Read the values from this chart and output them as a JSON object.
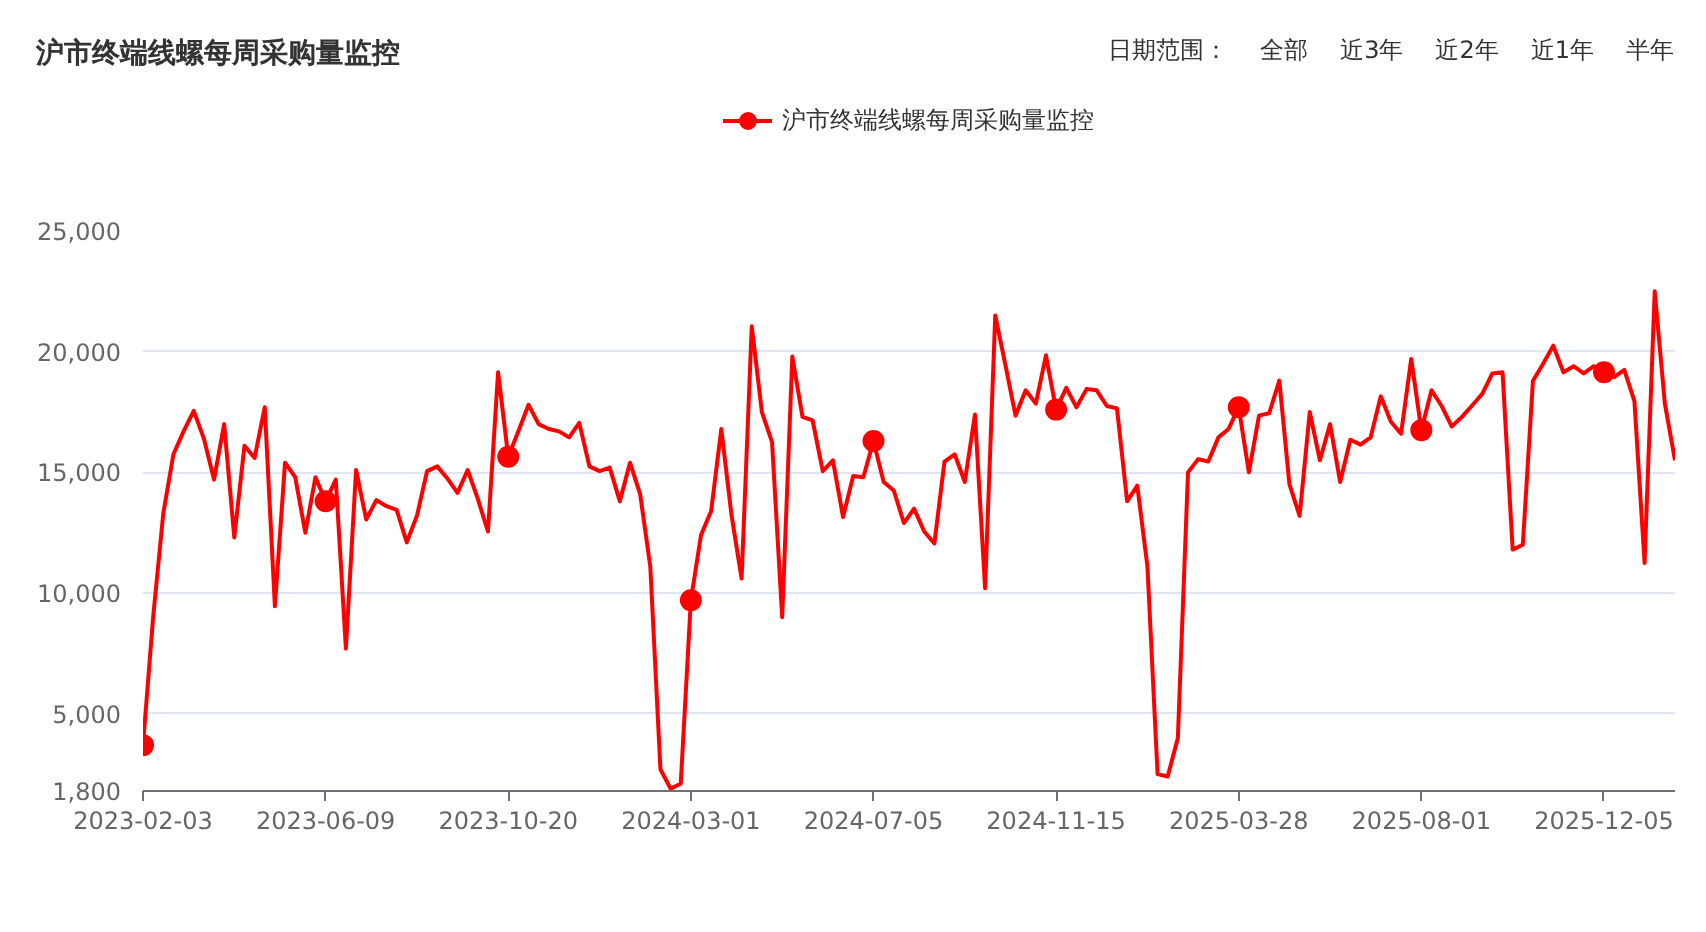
{
  "chart_data": {
    "type": "line",
    "title": "沪市终端线螺每周采购量监控",
    "annotations": [
      "日期范围：",
      "全部",
      "近3年",
      "近2年",
      "近1年",
      "半年"
    ],
    "categories": [
      "2023-02-03",
      null,
      null,
      null,
      null,
      null,
      null,
      null,
      null,
      null,
      null,
      null,
      null,
      null,
      null,
      null,
      null,
      null,
      "2023-06-09",
      null,
      null,
      null,
      null,
      null,
      null,
      null,
      null,
      null,
      null,
      null,
      null,
      null,
      null,
      null,
      null,
      null,
      "2023-10-20",
      null,
      null,
      null,
      null,
      null,
      null,
      null,
      null,
      null,
      null,
      null,
      null,
      null,
      null,
      null,
      null,
      null,
      "2024-03-01",
      null,
      null,
      null,
      null,
      null,
      null,
      null,
      null,
      null,
      null,
      null,
      null,
      null,
      null,
      null,
      null,
      null,
      "2024-07-05",
      null,
      null,
      null,
      null,
      null,
      null,
      null,
      null,
      null,
      null,
      null,
      null,
      null,
      null,
      null,
      null,
      null,
      "2024-11-15",
      null,
      null,
      null,
      null,
      null,
      null,
      null,
      null,
      null,
      null,
      null,
      null,
      null,
      null,
      null,
      null,
      null,
      "2025-03-28",
      null,
      null,
      null,
      null,
      null,
      null,
      null,
      null,
      null,
      null,
      null,
      null,
      null,
      null,
      null,
      null,
      null,
      "2025-08-01",
      null,
      null,
      null,
      null,
      null,
      null,
      null,
      null,
      null,
      null,
      null,
      null,
      null,
      null,
      null,
      null,
      null,
      "2025-12-05",
      null,
      null,
      null,
      null,
      null,
      null,
      null
    ],
    "ylim": [
      1800,
      25000
    ],
    "yticks": [
      {
        "value": 1800,
        "label": "1,800"
      },
      {
        "value": 5000,
        "label": "5,000"
      },
      {
        "value": 10000,
        "label": "10,000"
      },
      {
        "value": 15000,
        "label": "15,000"
      },
      {
        "value": 20000,
        "label": "20,000"
      },
      {
        "value": 25000,
        "label": "25,000"
      }
    ],
    "grid": "y",
    "legend": "top",
    "series": [
      {
        "name": "沪市终端线螺每周采购量监控",
        "color": "#ff0000",
        "values": [
          3700,
          9000,
          13300,
          15750,
          16700,
          17550,
          16400,
          14700,
          17000,
          12300,
          16100,
          15600,
          17700,
          9450,
          15400,
          14800,
          12500,
          14800,
          13800,
          14700,
          7700,
          15100,
          13050,
          13850,
          13600,
          13450,
          12100,
          13200,
          15050,
          15250,
          14750,
          14150,
          15100,
          13900,
          12550,
          19150,
          15650,
          16700,
          17800,
          17000,
          16800,
          16700,
          16450,
          17050,
          15250,
          15050,
          15200,
          13800,
          15400,
          14100,
          11100,
          2700,
          1900,
          2100,
          9700,
          12400,
          13400,
          16800,
          13250,
          10600,
          21050,
          17500,
          16250,
          9000,
          19800,
          17300,
          17150,
          15050,
          15500,
          13150,
          14850,
          14800,
          16300,
          14600,
          14250,
          12900,
          13500,
          12550,
          12050,
          15450,
          15750,
          14600,
          17400,
          10200,
          21500,
          19450,
          17350,
          18400,
          17850,
          19850,
          17600,
          18500,
          17700,
          18450,
          18400,
          17750,
          17650,
          13800,
          14450,
          11100,
          2500,
          2400,
          4000,
          15000,
          15550,
          15450,
          16450,
          16800,
          17700,
          15000,
          17350,
          17450,
          18800,
          14500,
          13200,
          17500,
          15500,
          17000,
          14600,
          16350,
          16150,
          16450,
          18150,
          17100,
          16600,
          19700,
          16750,
          18400,
          17750,
          16900,
          17300,
          17770,
          18250,
          19100,
          19150,
          11800,
          12000,
          18800,
          19500,
          20250,
          19150,
          19400,
          19100,
          19400,
          19150,
          18950,
          19250,
          17950,
          11250,
          22500,
          17850,
          15500
        ]
      },
      {
        "color": "#ff0000",
        "type": "scatter",
        "marker": "circle",
        "values": [
          3700,
          null,
          null,
          null,
          null,
          null,
          null,
          null,
          null,
          null,
          null,
          null,
          null,
          null,
          null,
          null,
          null,
          null,
          13800,
          null,
          null,
          null,
          null,
          null,
          null,
          null,
          null,
          null,
          null,
          null,
          null,
          null,
          null,
          null,
          null,
          null,
          15650,
          null,
          null,
          null,
          null,
          null,
          null,
          null,
          null,
          null,
          null,
          null,
          null,
          null,
          null,
          null,
          null,
          null,
          9700,
          null,
          null,
          null,
          null,
          null,
          null,
          null,
          null,
          null,
          null,
          null,
          null,
          null,
          null,
          null,
          null,
          null,
          16300,
          null,
          null,
          null,
          null,
          null,
          null,
          null,
          null,
          null,
          null,
          null,
          null,
          null,
          null,
          null,
          null,
          null,
          17600,
          null,
          null,
          null,
          null,
          null,
          null,
          null,
          null,
          null,
          null,
          null,
          null,
          null,
          null,
          null,
          null,
          null,
          17700,
          null,
          null,
          null,
          null,
          null,
          null,
          null,
          null,
          null,
          null,
          null,
          null,
          null,
          null,
          null,
          null,
          null,
          16750,
          null,
          null,
          null,
          null,
          null,
          null,
          null,
          null,
          null,
          null,
          null,
          null,
          null,
          null,
          null,
          null,
          null,
          19150,
          null,
          null,
          null,
          null,
          null,
          null,
          null
        ]
      }
    ]
  }
}
